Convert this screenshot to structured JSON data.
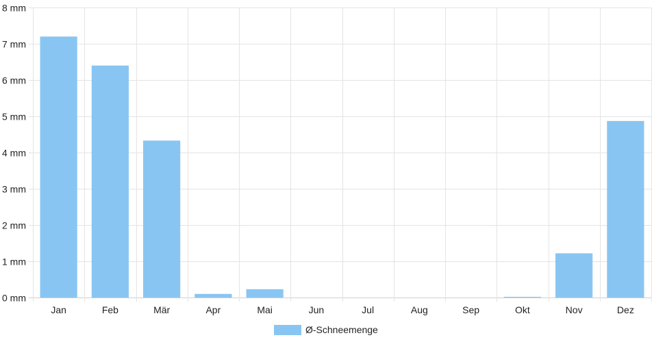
{
  "chart_data": {
    "type": "bar",
    "categories": [
      "Jan",
      "Feb",
      "Mär",
      "Apr",
      "Mai",
      "Jun",
      "Jul",
      "Aug",
      "Sep",
      "Okt",
      "Nov",
      "Dez"
    ],
    "series": [
      {
        "name": "Ø-Schneemenge",
        "color": "#89c5f2",
        "values": [
          7.2,
          6.4,
          4.33,
          0.1,
          0.23,
          0,
          0,
          0,
          0,
          0.02,
          1.22,
          4.87
        ]
      }
    ],
    "y_ticks": [
      "0 mm",
      "1 mm",
      "2 mm",
      "3 mm",
      "4 mm",
      "5 mm",
      "6 mm",
      "7 mm",
      "8 mm"
    ],
    "ylim": [
      0,
      8
    ],
    "grid": true,
    "legend_position": "bottom"
  }
}
